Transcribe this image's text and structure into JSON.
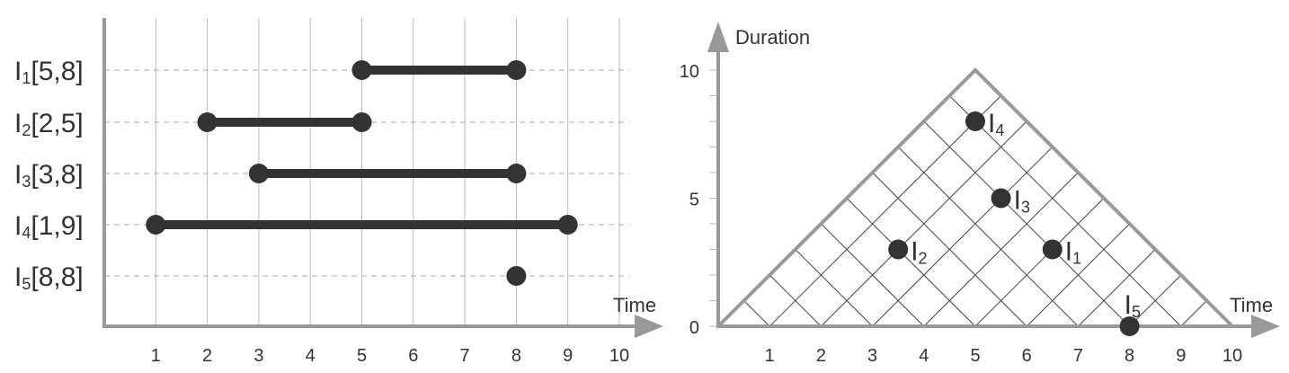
{
  "chart_data": [
    {
      "type": "interval-timeline",
      "xlabel": "Time",
      "xticks": [
        1,
        2,
        3,
        4,
        5,
        6,
        7,
        8,
        9,
        10
      ],
      "intervals": [
        {
          "name": "I",
          "sub": "1",
          "range": "[5,8]",
          "start": 5,
          "end": 8
        },
        {
          "name": "I",
          "sub": "2",
          "range": "[2,5]",
          "start": 2,
          "end": 5
        },
        {
          "name": "I",
          "sub": "3",
          "range": "[3,8]",
          "start": 3,
          "end": 8
        },
        {
          "name": "I",
          "sub": "4",
          "range": "[1,9]",
          "start": 1,
          "end": 9
        },
        {
          "name": "I",
          "sub": "5",
          "range": "[8,8]",
          "start": 8,
          "end": 8
        }
      ]
    },
    {
      "type": "scatter",
      "xlabel": "Time",
      "ylabel": "Duration",
      "xticks": [
        1,
        2,
        3,
        4,
        5,
        6,
        7,
        8,
        9,
        10
      ],
      "yticks": [
        0,
        5,
        10
      ],
      "xlim": [
        0,
        10
      ],
      "ylim": [
        0,
        10
      ],
      "triangle": [
        [
          0,
          0
        ],
        [
          5,
          10
        ],
        [
          10,
          0
        ]
      ],
      "points": [
        {
          "name": "I",
          "sub": "1",
          "x": 6.5,
          "y": 3
        },
        {
          "name": "I",
          "sub": "2",
          "x": 3.5,
          "y": 3
        },
        {
          "name": "I",
          "sub": "3",
          "x": 5.5,
          "y": 5
        },
        {
          "name": "I",
          "sub": "4",
          "x": 5,
          "y": 8
        },
        {
          "name": "I",
          "sub": "5",
          "x": 8,
          "y": 0
        }
      ]
    }
  ],
  "colors": {
    "axis": "#999999",
    "grid": "#bbbbbb",
    "dash": "#aaaaaa",
    "mark": "#333333",
    "text": "#333333",
    "triangle": "#999999",
    "inner": "#444444"
  }
}
